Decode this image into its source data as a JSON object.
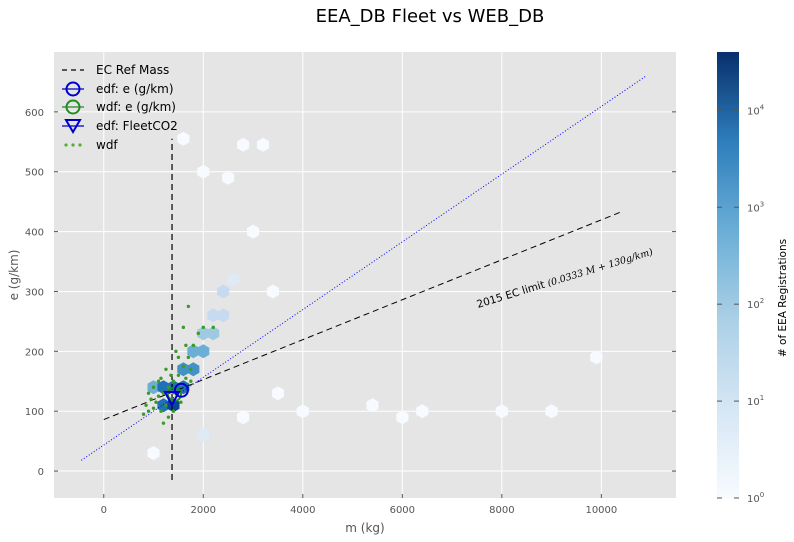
{
  "chart_data": {
    "type": "scatter",
    "title": "EEA_DB Fleet vs WEB_DB",
    "xlabel": "m (kg)",
    "ylabel": "e (g/km)",
    "xlim": [
      -1000,
      11500
    ],
    "ylim": [
      -45,
      700
    ],
    "xticks": [
      0,
      2000,
      4000,
      6000,
      8000,
      10000
    ],
    "xtick_labels": [
      "0",
      "2000",
      "4000",
      "6000",
      "8000",
      "10000"
    ],
    "yticks": [
      0,
      100,
      200,
      300,
      400,
      500,
      600
    ],
    "ytick_labels": [
      "0",
      "100",
      "200",
      "300",
      "400",
      "500",
      "600"
    ],
    "grid": true,
    "legend_placement": "top-left",
    "colors": {
      "axes_bg": "#e5e5e5",
      "grid": "#ffffff",
      "ec_ref": "#000000",
      "edf": "#0000cc",
      "wdf": "#228b22",
      "diag": "#0000ff",
      "text": "#555555",
      "title": "#000000"
    },
    "legend": [
      {
        "label": "EC Ref Mass",
        "marker": "dashed-line",
        "color": "#000000"
      },
      {
        "label": "edf: e (g/km)",
        "marker": "circle",
        "color": "#0000cc"
      },
      {
        "label": "wdf: e (g/km)",
        "marker": "circle",
        "color": "#228b22"
      },
      {
        "label": "edf: FleetCO2",
        "marker": "triangle-down",
        "color": "#0000cc"
      },
      {
        "label": "wdf",
        "marker": "dots",
        "color": "#5aaa3a"
      }
    ],
    "ec_ref_mass": {
      "x": 1372,
      "y_range": [
        -15,
        555
      ]
    },
    "ec_limit_line": {
      "x": [
        0,
        10400
      ],
      "y": [
        86,
        433
      ],
      "label": "2015 EC limit",
      "formula": "(0.0333 M + 130g/km)"
    },
    "diagonal_line": {
      "x": [
        -450,
        10900
      ],
      "y": [
        18,
        660
      ]
    },
    "edf_mean": {
      "x": 1560,
      "y": 135
    },
    "wdf_mean": {
      "x": 1420,
      "y": 128
    },
    "edf_fleetco2": {
      "x": 1370,
      "y": 122
    },
    "hexbin_cells": [
      {
        "x": 1000,
        "y": 140,
        "count": 800
      },
      {
        "x": 1200,
        "y": 140,
        "count": 5000
      },
      {
        "x": 1200,
        "y": 110,
        "count": 12000
      },
      {
        "x": 1400,
        "y": 110,
        "count": 20000
      },
      {
        "x": 1400,
        "y": 140,
        "count": 15000
      },
      {
        "x": 1600,
        "y": 140,
        "count": 8000
      },
      {
        "x": 1600,
        "y": 170,
        "count": 3000
      },
      {
        "x": 1800,
        "y": 170,
        "count": 1500
      },
      {
        "x": 1800,
        "y": 200,
        "count": 600
      },
      {
        "x": 2000,
        "y": 200,
        "count": 300
      },
      {
        "x": 2000,
        "y": 230,
        "count": 150
      },
      {
        "x": 2200,
        "y": 230,
        "count": 80
      },
      {
        "x": 2200,
        "y": 260,
        "count": 40
      },
      {
        "x": 2400,
        "y": 260,
        "count": 20
      },
      {
        "x": 2400,
        "y": 300,
        "count": 10
      },
      {
        "x": 2600,
        "y": 320,
        "count": 5
      },
      {
        "x": 3000,
        "y": 400,
        "count": 2
      },
      {
        "x": 3400,
        "y": 300,
        "count": 1
      },
      {
        "x": 4000,
        "y": 100,
        "count": 1
      },
      {
        "x": 5400,
        "y": 110,
        "count": 1
      },
      {
        "x": 8000,
        "y": 100,
        "count": 1
      },
      {
        "x": 9000,
        "y": 100,
        "count": 1
      },
      {
        "x": 9900,
        "y": 190,
        "count": 1
      },
      {
        "x": 3500,
        "y": 130,
        "count": 1
      },
      {
        "x": 1600,
        "y": 555,
        "count": 1
      },
      {
        "x": 2800,
        "y": 545,
        "count": 1
      },
      {
        "x": 3200,
        "y": 545,
        "count": 1
      },
      {
        "x": 2000,
        "y": 500,
        "count": 1
      },
      {
        "x": 2500,
        "y": 490,
        "count": 1
      },
      {
        "x": 1000,
        "y": 30,
        "count": 1
      },
      {
        "x": 2000,
        "y": 60,
        "count": 3
      },
      {
        "x": 2800,
        "y": 90,
        "count": 2
      },
      {
        "x": 6000,
        "y": 90,
        "count": 1
      },
      {
        "x": 6400,
        "y": 100,
        "count": 1
      }
    ],
    "wdf_points": [
      {
        "x": 800,
        "y": 95
      },
      {
        "x": 850,
        "y": 110
      },
      {
        "x": 900,
        "y": 100
      },
      {
        "x": 950,
        "y": 120
      },
      {
        "x": 1000,
        "y": 105
      },
      {
        "x": 1050,
        "y": 115
      },
      {
        "x": 1100,
        "y": 125
      },
      {
        "x": 1150,
        "y": 100
      },
      {
        "x": 1200,
        "y": 130
      },
      {
        "x": 1250,
        "y": 110
      },
      {
        "x": 1300,
        "y": 140
      },
      {
        "x": 1350,
        "y": 120
      },
      {
        "x": 1400,
        "y": 150
      },
      {
        "x": 1450,
        "y": 130
      },
      {
        "x": 1500,
        "y": 160
      },
      {
        "x": 1550,
        "y": 145
      },
      {
        "x": 1600,
        "y": 175
      },
      {
        "x": 1650,
        "y": 155
      },
      {
        "x": 1700,
        "y": 190
      },
      {
        "x": 1750,
        "y": 170
      },
      {
        "x": 1800,
        "y": 210
      },
      {
        "x": 1900,
        "y": 230
      },
      {
        "x": 2000,
        "y": 240
      },
      {
        "x": 2200,
        "y": 240
      },
      {
        "x": 1700,
        "y": 275
      },
      {
        "x": 1600,
        "y": 240
      },
      {
        "x": 1200,
        "y": 80
      },
      {
        "x": 1300,
        "y": 90
      },
      {
        "x": 1100,
        "y": 150
      },
      {
        "x": 1000,
        "y": 140
      },
      {
        "x": 1400,
        "y": 100
      },
      {
        "x": 1500,
        "y": 190
      },
      {
        "x": 1250,
        "y": 170
      },
      {
        "x": 900,
        "y": 130
      },
      {
        "x": 1350,
        "y": 160
      },
      {
        "x": 1450,
        "y": 200
      },
      {
        "x": 1550,
        "y": 115
      },
      {
        "x": 1650,
        "y": 210
      },
      {
        "x": 1750,
        "y": 150
      },
      {
        "x": 1150,
        "y": 155
      }
    ],
    "colorbar": {
      "label": "# of EEA Registrations",
      "scale": "log",
      "range": [
        1,
        40000
      ],
      "ticks": [
        {
          "value": 1,
          "base": "10",
          "exp": "0"
        },
        {
          "value": 10,
          "base": "10",
          "exp": "1"
        },
        {
          "value": 100,
          "base": "10",
          "exp": "2"
        },
        {
          "value": 1000,
          "base": "10",
          "exp": "3"
        },
        {
          "value": 10000,
          "base": "10",
          "exp": "4"
        }
      ]
    }
  }
}
